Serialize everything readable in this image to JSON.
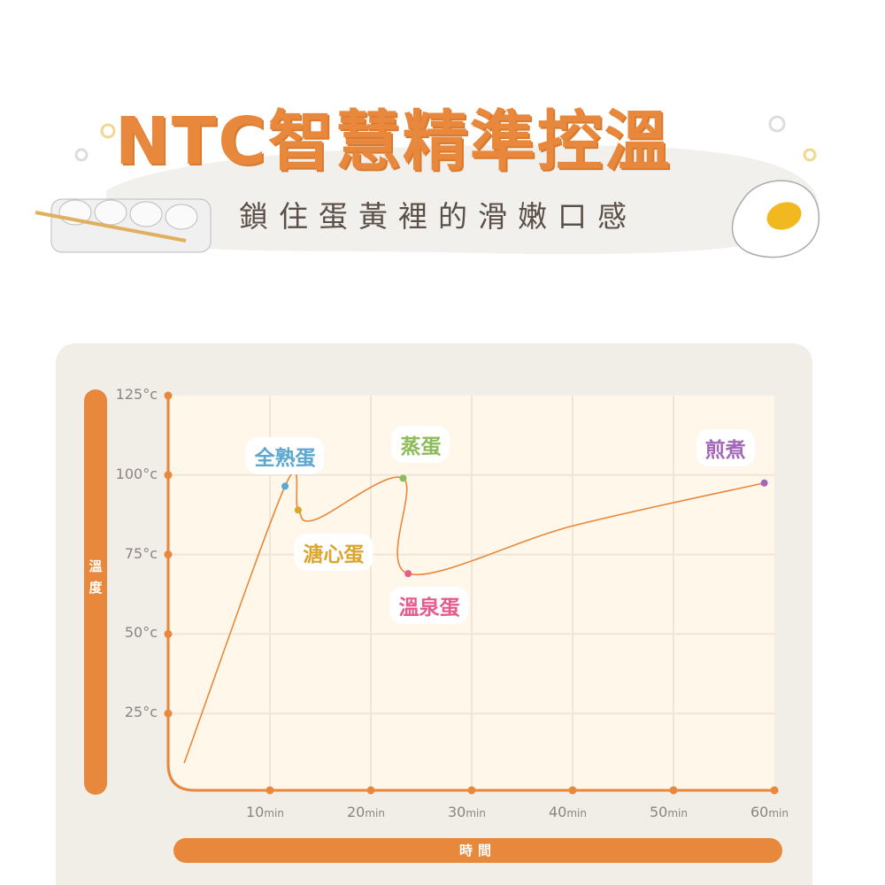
{
  "header": {
    "title": "NTC智慧精準控溫",
    "subtitle": "鎖住蛋黃裡的滑嫩口感"
  },
  "colors": {
    "accent": "#e8883c",
    "panel": "#f1ede7",
    "plot": "#fef7ea",
    "grid": "#eee6da",
    "tick_text": "#8a8580"
  },
  "chart_data": {
    "type": "line",
    "xlabel": "時間",
    "ylabel": "溫度",
    "xlim": [
      0,
      60
    ],
    "ylim": [
      0,
      125
    ],
    "x_ticks": [
      {
        "value": 10,
        "num": "10",
        "unit": "min"
      },
      {
        "value": 20,
        "num": "20",
        "unit": "min"
      },
      {
        "value": 30,
        "num": "30",
        "unit": "min"
      },
      {
        "value": 40,
        "num": "40",
        "unit": "min"
      },
      {
        "value": 50,
        "num": "50",
        "unit": "min"
      },
      {
        "value": 60,
        "num": "60",
        "unit": "min"
      }
    ],
    "y_ticks": [
      {
        "value": 125,
        "label": "125°c"
      },
      {
        "value": 100,
        "label": "100°c"
      },
      {
        "value": 75,
        "label": "75°c"
      },
      {
        "value": 50,
        "label": "50°c"
      },
      {
        "value": 25,
        "label": "25°c"
      }
    ],
    "grid": true,
    "line_color": "#e8883c",
    "curve": [
      [
        1.5,
        9.4
      ],
      [
        11.5,
        96.5
      ],
      [
        12.8,
        89
      ],
      [
        14.5,
        86
      ],
      [
        23.2,
        99
      ],
      [
        23.7,
        69
      ],
      [
        40,
        84
      ],
      [
        59,
        97.5
      ]
    ],
    "points": [
      {
        "label": "全熟蛋",
        "x": 11.5,
        "y": 96.5,
        "color": "#5aa7d0"
      },
      {
        "label": "溏心蛋",
        "x": 12.8,
        "y": 89,
        "color": "#d9a62e"
      },
      {
        "label": "蒸蛋",
        "x": 23.2,
        "y": 99,
        "color": "#8dbb5a"
      },
      {
        "label": "溫泉蛋",
        "x": 23.7,
        "y": 69,
        "color": "#e45b8c"
      },
      {
        "label": "煎煮",
        "x": 59,
        "y": 97.5,
        "color": "#a466b8"
      }
    ]
  }
}
